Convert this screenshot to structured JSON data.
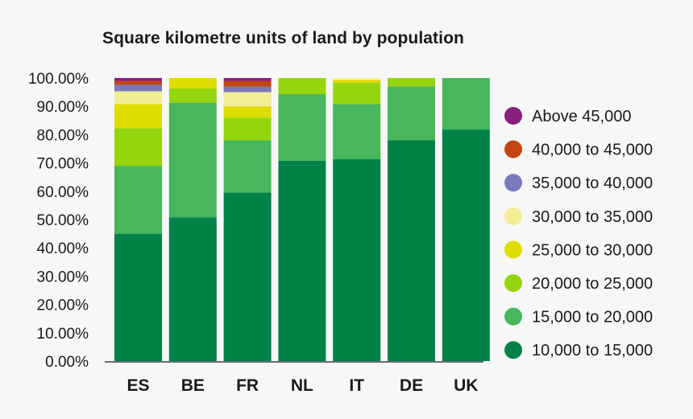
{
  "chart_data": {
    "type": "bar",
    "stacked": true,
    "title": "Square kilometre units of land by population",
    "xlabel": "",
    "ylabel": "",
    "ylim": [
      0,
      100
    ],
    "y_ticks": [
      "0.00%",
      "10.00%",
      "20.00%",
      "30.00%",
      "40.00%",
      "50.00%",
      "60.00%",
      "70.00%",
      "80.00%",
      "90.00%",
      "100.00%"
    ],
    "categories": [
      "ES",
      "BE",
      "FR",
      "NL",
      "IT",
      "DE",
      "UK"
    ],
    "series": [
      {
        "name": "10,000 to 15,000",
        "color": "#008148",
        "values": [
          45.0,
          50.8,
          59.5,
          70.8,
          71.3,
          78.0,
          81.8
        ]
      },
      {
        "name": "15,000 to 20,000",
        "color": "#47b65c",
        "values": [
          24.0,
          40.5,
          18.5,
          23.5,
          19.5,
          19.0,
          18.2
        ]
      },
      {
        "name": "20,000 to 25,000",
        "color": "#95d50f",
        "values": [
          13.3,
          5.0,
          8.0,
          5.7,
          7.5,
          3.0,
          0
        ]
      },
      {
        "name": "25,000 to 30,000",
        "color": "#dfdc00",
        "values": [
          8.5,
          3.7,
          4.0,
          0,
          1.0,
          0,
          0
        ]
      },
      {
        "name": "30,000 to 35,000",
        "color": "#f2ee95",
        "values": [
          4.5,
          0,
          5.0,
          0,
          0.7,
          0,
          0
        ]
      },
      {
        "name": "35,000 to 40,000",
        "color": "#7b78bb",
        "values": [
          2.3,
          0,
          2.0,
          0,
          0,
          0,
          0
        ]
      },
      {
        "name": "40,000 to 45,000",
        "color": "#c2460f",
        "values": [
          1.4,
          0,
          2.0,
          0,
          0,
          0,
          0
        ]
      },
      {
        "name": "Above 45,000",
        "color": "#88207f",
        "values": [
          1.0,
          0,
          1.0,
          0,
          0,
          0,
          0
        ]
      }
    ],
    "legend_position": "right",
    "grid": false
  }
}
